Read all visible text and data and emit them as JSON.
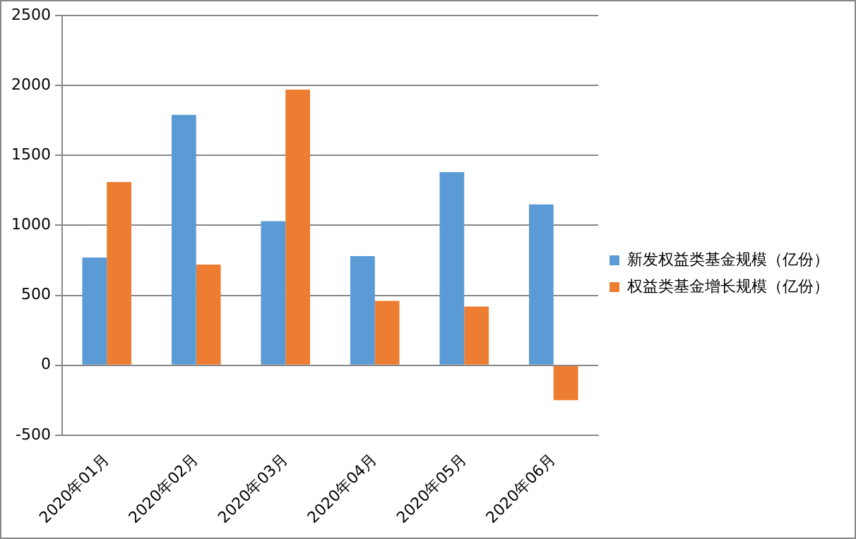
{
  "chart_data": {
    "type": "bar",
    "categories": [
      "2020年01月",
      "2020年02月",
      "2020年03月",
      "2020年04月",
      "2020年05月",
      "2020年06月"
    ],
    "series": [
      {
        "name": "新发权益类基金规模（亿份）",
        "color": "#5b9bd5",
        "values": [
          770,
          1790,
          1030,
          780,
          1380,
          1150
        ]
      },
      {
        "name": "权益类基金增长规模（亿份）",
        "color": "#ed7d31",
        "values": [
          1310,
          720,
          1970,
          460,
          420,
          -250
        ]
      }
    ],
    "ylim": [
      -500,
      2500
    ],
    "yticks": [
      -500,
      0,
      500,
      1000,
      1500,
      2000,
      2500
    ],
    "grid": "y",
    "legend": "right"
  }
}
